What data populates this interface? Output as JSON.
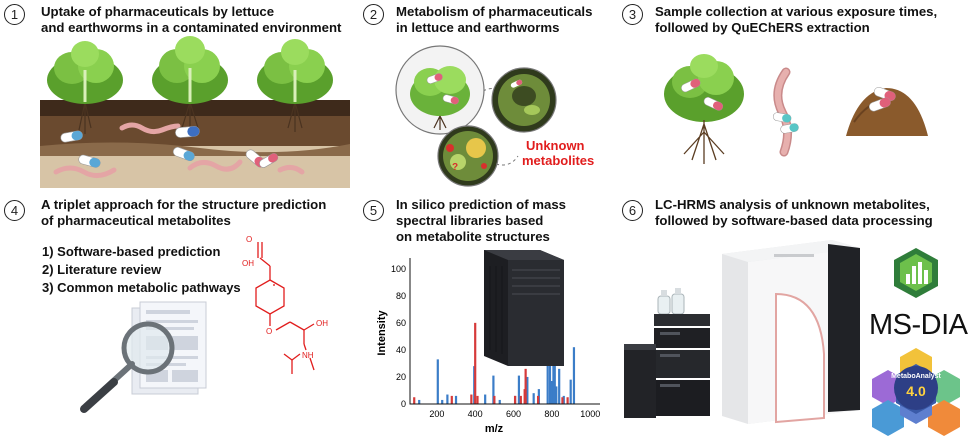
{
  "colors": {
    "accent_red": "#e11d1d",
    "bar_blue": "#3b7dc8",
    "bar_red": "#d63a3a"
  },
  "steps": [
    {
      "number": "1",
      "lines": [
        "Uptake of pharmaceuticals by lettuce",
        "and earthworms in a contaminated environment"
      ]
    },
    {
      "number": "2",
      "lines": [
        "Metabolism of pharmaceuticals",
        "in lettuce and earthworms"
      ]
    },
    {
      "number": "3",
      "lines": [
        "Sample collection at various exposure times,",
        "followed by QuEChERS extraction"
      ]
    },
    {
      "number": "4",
      "lines": [
        "A triplet approach for the structure prediction",
        "of pharmaceutical metabolites"
      ]
    },
    {
      "number": "5",
      "lines": [
        "In silico prediction of mass",
        "spectral libraries based",
        "on metabolite structures"
      ]
    },
    {
      "number": "6",
      "lines": [
        "LC-HRMS analysis of unknown metabolites,",
        "followed by software-based data processing"
      ]
    }
  ],
  "unknown_metabolites": [
    "Unknown",
    "metabolites"
  ],
  "approaches": [
    "1) Software-based prediction",
    "2) Literature review",
    "3) Common metabolic pathways"
  ],
  "molecule_labels": {
    "oh_top": "OH",
    "o_top": "O",
    "o_ether": "O",
    "oh_side": "OH",
    "nh": "NH"
  },
  "software": {
    "msdial": "MS-DIAL",
    "metaboanalyst": "MetaboAnalyst",
    "version": "4.0"
  },
  "chart_data": {
    "type": "bar",
    "xlabel": "m/z",
    "ylabel": "Intensity",
    "xlim": [
      60,
      1030
    ],
    "ylim": [
      0,
      105
    ],
    "xticks": [
      200,
      400,
      600,
      800,
      1000
    ],
    "yticks": [
      0,
      20,
      40,
      60,
      80,
      100
    ],
    "series": [
      {
        "color": "blue",
        "points": [
          [
            108,
            3
          ],
          [
            205,
            33
          ],
          [
            228,
            3
          ],
          [
            255,
            7
          ],
          [
            300,
            6
          ],
          [
            395,
            28
          ],
          [
            452,
            7
          ],
          [
            495,
            21
          ],
          [
            528,
            3
          ],
          [
            608,
            6
          ],
          [
            628,
            21
          ],
          [
            672,
            20
          ],
          [
            705,
            8
          ],
          [
            732,
            11
          ],
          [
            778,
            38
          ],
          [
            790,
            42
          ],
          [
            798,
            17
          ],
          [
            808,
            100
          ],
          [
            815,
            46
          ],
          [
            823,
            13
          ],
          [
            838,
            26
          ],
          [
            862,
            6
          ],
          [
            898,
            18
          ],
          [
            915,
            42
          ]
        ]
      },
      {
        "color": "red",
        "points": [
          [
            82,
            5
          ],
          [
            278,
            6
          ],
          [
            380,
            7
          ],
          [
            400,
            60
          ],
          [
            412,
            6
          ],
          [
            500,
            6
          ],
          [
            608,
            6
          ],
          [
            638,
            6
          ],
          [
            658,
            11
          ],
          [
            663,
            26
          ],
          [
            728,
            6
          ],
          [
            855,
            5
          ],
          [
            882,
            5
          ]
        ]
      }
    ]
  }
}
